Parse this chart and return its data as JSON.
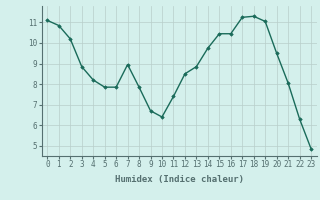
{
  "xlabel": "Humidex (Indice chaleur)",
  "x_values": [
    0,
    1,
    2,
    3,
    4,
    5,
    6,
    7,
    8,
    9,
    10,
    11,
    12,
    13,
    14,
    15,
    16,
    17,
    18,
    19,
    20,
    21,
    22,
    23
  ],
  "y_values": [
    11.1,
    10.85,
    10.2,
    8.85,
    8.2,
    7.85,
    7.85,
    8.95,
    7.85,
    6.7,
    6.4,
    7.4,
    8.5,
    8.85,
    9.75,
    10.45,
    10.45,
    11.25,
    11.3,
    11.05,
    9.5,
    8.05,
    6.3,
    4.85
  ],
  "line_color": "#1a6b5a",
  "marker": "D",
  "marker_size": 1.8,
  "bg_color": "#d4f0ec",
  "grid_color": "#b8ceca",
  "ylim": [
    4.5,
    11.8
  ],
  "xlim": [
    -0.5,
    23.5
  ],
  "yticks": [
    5,
    6,
    7,
    8,
    9,
    10,
    11
  ],
  "xticks": [
    0,
    1,
    2,
    3,
    4,
    5,
    6,
    7,
    8,
    9,
    10,
    11,
    12,
    13,
    14,
    15,
    16,
    17,
    18,
    19,
    20,
    21,
    22,
    23
  ],
  "tick_fontsize": 5.5,
  "label_fontsize": 6.5,
  "label_fontweight": "bold",
  "linewidth": 1.0,
  "spine_color": "#557070",
  "tick_color": "#557070"
}
